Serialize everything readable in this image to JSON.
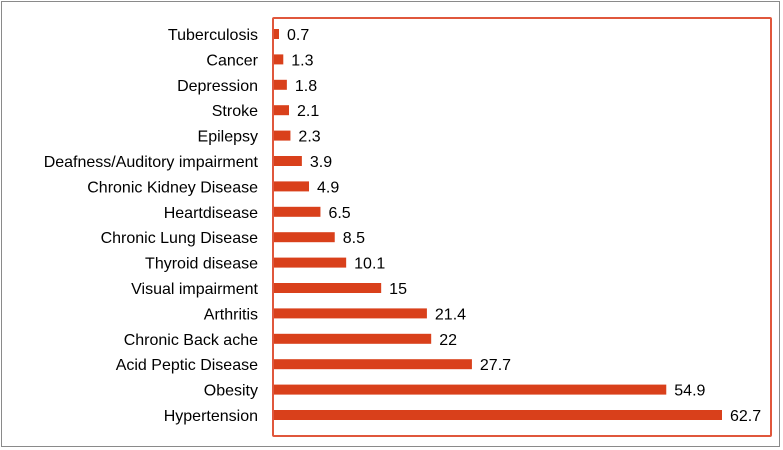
{
  "chart_data": {
    "type": "bar",
    "orientation": "horizontal",
    "categories": [
      "Tuberculosis",
      "Cancer",
      "Depression",
      "Stroke",
      "Epilepsy",
      "Deafness/Auditory impairment",
      "Chronic Kidney Disease",
      "Heartdisease",
      "Chronic Lung Disease",
      "Thyroid disease",
      "Visual impairment",
      "Arthritis",
      "Chronic Back ache",
      "Acid Peptic Disease",
      "Obesity",
      "Hypertension"
    ],
    "values": [
      0.7,
      1.3,
      1.8,
      2.1,
      2.3,
      3.9,
      4.9,
      6.5,
      8.5,
      10.1,
      15,
      21.4,
      22,
      27.7,
      54.9,
      62.7
    ],
    "value_labels": [
      "0.7",
      "1.3",
      "1.8",
      "2.1",
      "2.3",
      "3.9",
      "4.9",
      "6.5",
      "8.5",
      "10.1",
      "15",
      "21.4",
      "22",
      "27.7",
      "54.9",
      "62.7"
    ],
    "xlim": [
      0,
      62.7
    ],
    "grid": false,
    "bar_color": "#d9401b",
    "frame_color": "#e0573c"
  }
}
